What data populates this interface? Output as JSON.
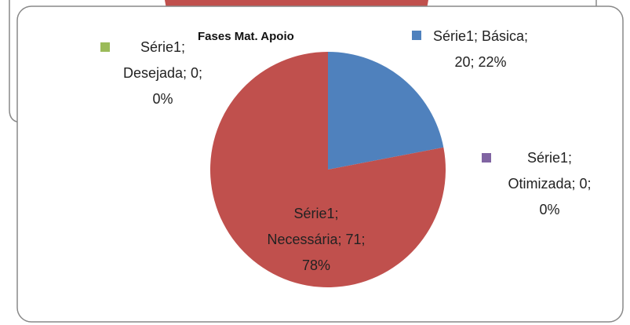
{
  "chart_data": {
    "type": "pie",
    "title": "Fases Mat. Apoio",
    "values": [
      20,
      71,
      0,
      0
    ],
    "value_labels": [
      "Série1; Básica; 20; 22%",
      "Série1; Necessária; 71; 78%",
      "Série1; Desejada; 0; 0%",
      "Série1; Otimizada; 0; 0%"
    ],
    "colors": [
      "#4f81bd",
      "#c0504d",
      "#9bbb59",
      "#8064a2"
    ]
  }
}
